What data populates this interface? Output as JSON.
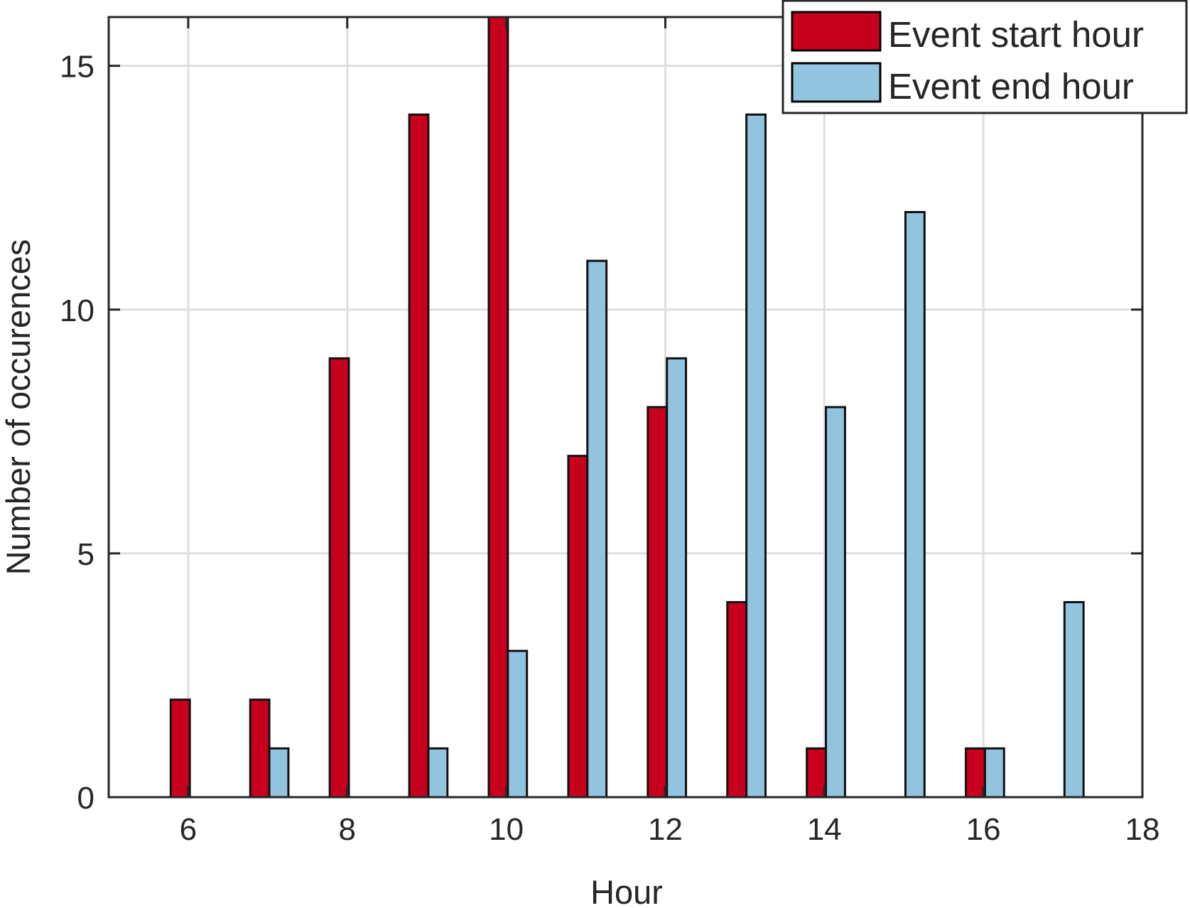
{
  "chart_data": {
    "type": "bar",
    "xlabel": "Hour",
    "ylabel": "Number of occurences",
    "xlim": [
      5,
      18
    ],
    "ylim": [
      0,
      16
    ],
    "xticks": [
      6,
      8,
      10,
      12,
      14,
      16,
      18
    ],
    "xtick_labels": [
      "6",
      "8",
      "10",
      "12",
      "14",
      "16",
      "18"
    ],
    "yticks": [
      0,
      5,
      10,
      15
    ],
    "ytick_labels": [
      "0",
      "5",
      "10",
      "15"
    ],
    "grid": true,
    "legend_position": "top-right",
    "series": [
      {
        "name": "Event start hour",
        "color": "#c8001e",
        "x": [
          6,
          7,
          8,
          9,
          10,
          11,
          12,
          13,
          14,
          16
        ],
        "values": [
          2,
          2,
          9,
          14,
          16,
          7,
          8,
          4,
          1,
          1
        ]
      },
      {
        "name": "Event end hour",
        "color": "#92c4df",
        "x": [
          7,
          9,
          10,
          11,
          12,
          13,
          14,
          15,
          16,
          17
        ],
        "values": [
          1,
          1,
          3,
          11,
          9,
          14,
          8,
          12,
          1,
          4
        ]
      }
    ]
  }
}
